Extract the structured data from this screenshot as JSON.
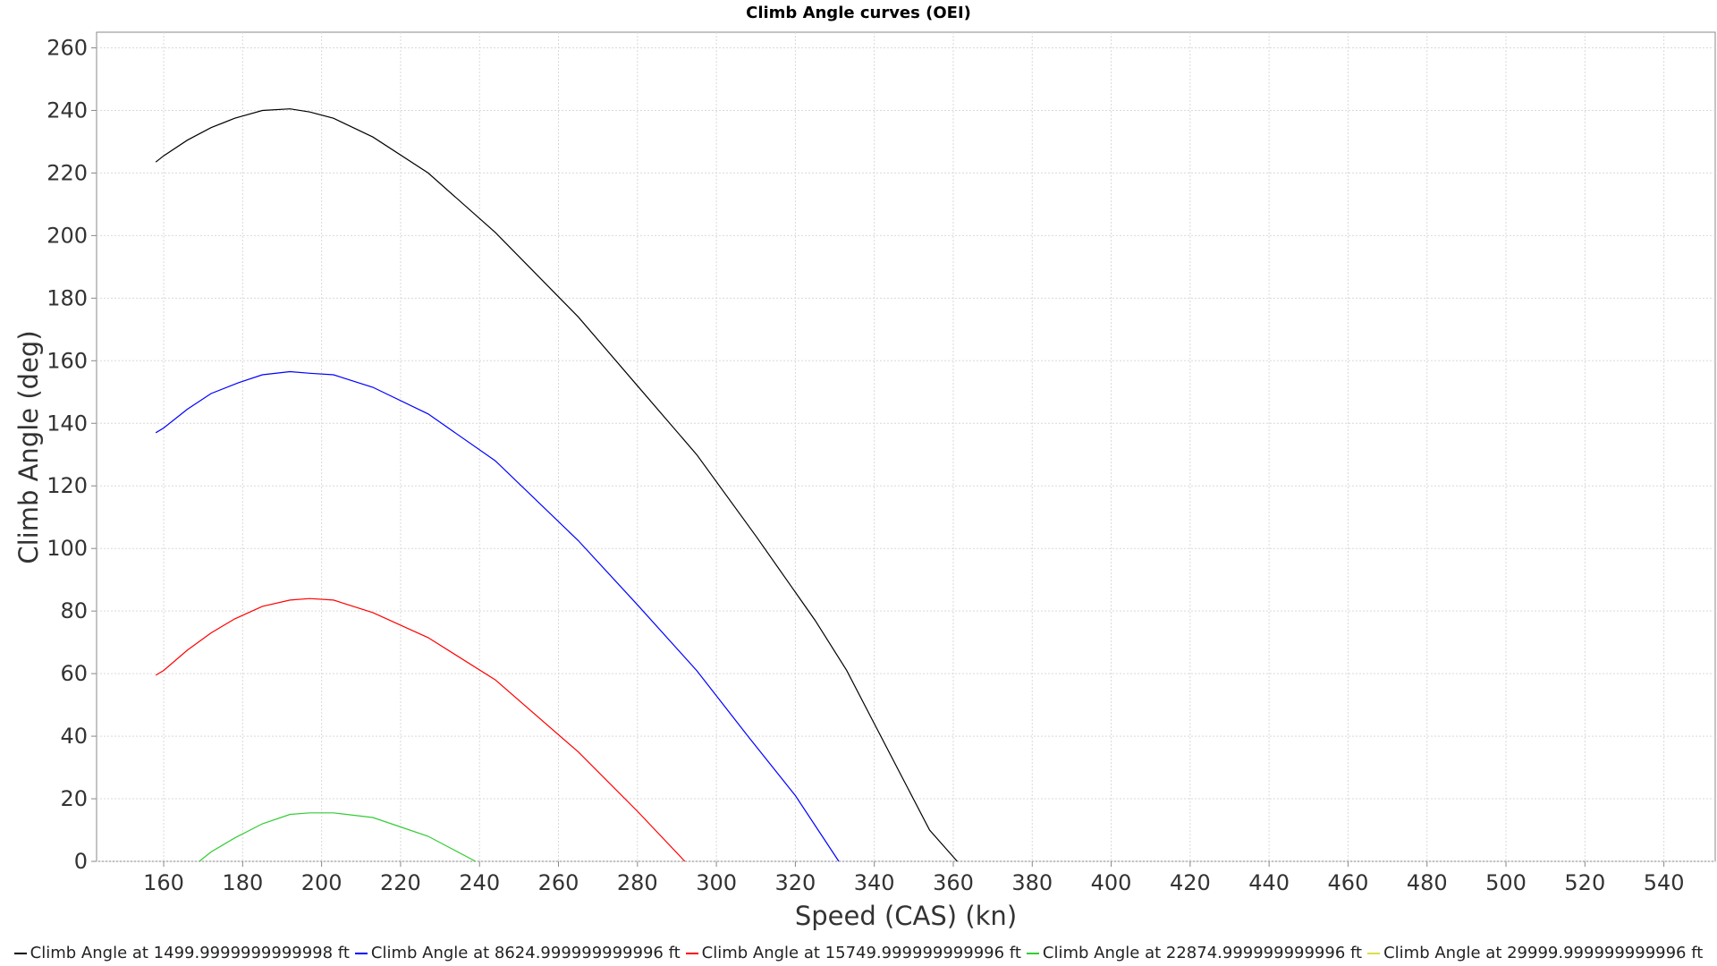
{
  "chart_data": {
    "type": "line",
    "title": "Climb Angle curves (OEI)",
    "xlabel": "Speed (CAS) (kn)",
    "ylabel": "Climb Angle (deg)",
    "xlim": [
      143,
      553
    ],
    "ylim": [
      0,
      265
    ],
    "xticks": [
      160,
      180,
      200,
      220,
      240,
      260,
      280,
      300,
      320,
      340,
      360,
      380,
      400,
      420,
      440,
      460,
      480,
      500,
      520,
      540
    ],
    "yticks": [
      0,
      20,
      40,
      60,
      80,
      100,
      120,
      140,
      160,
      180,
      200,
      220,
      240,
      260
    ],
    "grid": true,
    "legend_position": "bottom",
    "series": [
      {
        "name": "Climb Angle at 1499.9999999999998 ft",
        "color": "#000000",
        "points": [
          [
            158,
            223.5
          ],
          [
            160,
            225.5
          ],
          [
            166,
            230.5
          ],
          [
            172,
            234.5
          ],
          [
            178,
            237.5
          ],
          [
            185,
            240
          ],
          [
            192,
            240.5
          ],
          [
            197,
            239.5
          ],
          [
            203,
            237.5
          ],
          [
            213,
            231.5
          ],
          [
            227,
            220
          ],
          [
            244,
            201
          ],
          [
            265,
            174
          ],
          [
            280,
            152
          ],
          [
            295,
            130
          ],
          [
            310,
            104
          ],
          [
            325,
            77
          ],
          [
            333,
            61
          ],
          [
            340,
            44
          ],
          [
            347,
            27
          ],
          [
            354,
            10
          ],
          [
            361,
            0
          ]
        ]
      },
      {
        "name": "Climb Angle at 8624.999999999996 ft",
        "color": "#0000ff",
        "points": [
          [
            158,
            137
          ],
          [
            160,
            138.5
          ],
          [
            166,
            144.5
          ],
          [
            172,
            149.5
          ],
          [
            179,
            153
          ],
          [
            185,
            155.5
          ],
          [
            192,
            156.5
          ],
          [
            197,
            156
          ],
          [
            203,
            155.5
          ],
          [
            213,
            151.5
          ],
          [
            227,
            143
          ],
          [
            244,
            128
          ],
          [
            265,
            102.5
          ],
          [
            280,
            82
          ],
          [
            295,
            61
          ],
          [
            308,
            40
          ],
          [
            320,
            21
          ],
          [
            331,
            0
          ]
        ]
      },
      {
        "name": "Climb Angle at 15749.999999999996 ft",
        "color": "#ff0000",
        "points": [
          [
            158,
            59.5
          ],
          [
            160,
            61
          ],
          [
            166,
            67.5
          ],
          [
            172,
            73
          ],
          [
            178,
            77.5
          ],
          [
            185,
            81.5
          ],
          [
            192,
            83.5
          ],
          [
            197,
            84
          ],
          [
            203,
            83.5
          ],
          [
            213,
            79.5
          ],
          [
            227,
            71.5
          ],
          [
            244,
            58
          ],
          [
            265,
            35
          ],
          [
            280,
            16
          ],
          [
            292,
            0
          ]
        ]
      },
      {
        "name": "Climb Angle at 22874.999999999996 ft",
        "color": "#33cc33",
        "points": [
          [
            169,
            0
          ],
          [
            172,
            3
          ],
          [
            178,
            7.5
          ],
          [
            185,
            12
          ],
          [
            192,
            15
          ],
          [
            197,
            15.5
          ],
          [
            203,
            15.5
          ],
          [
            213,
            14
          ],
          [
            220,
            11
          ],
          [
            227,
            8
          ],
          [
            233,
            4
          ],
          [
            239,
            0
          ]
        ]
      },
      {
        "name": "Climb Angle at 29999.999999999996 ft",
        "color": "#dddd44",
        "points": []
      }
    ]
  }
}
